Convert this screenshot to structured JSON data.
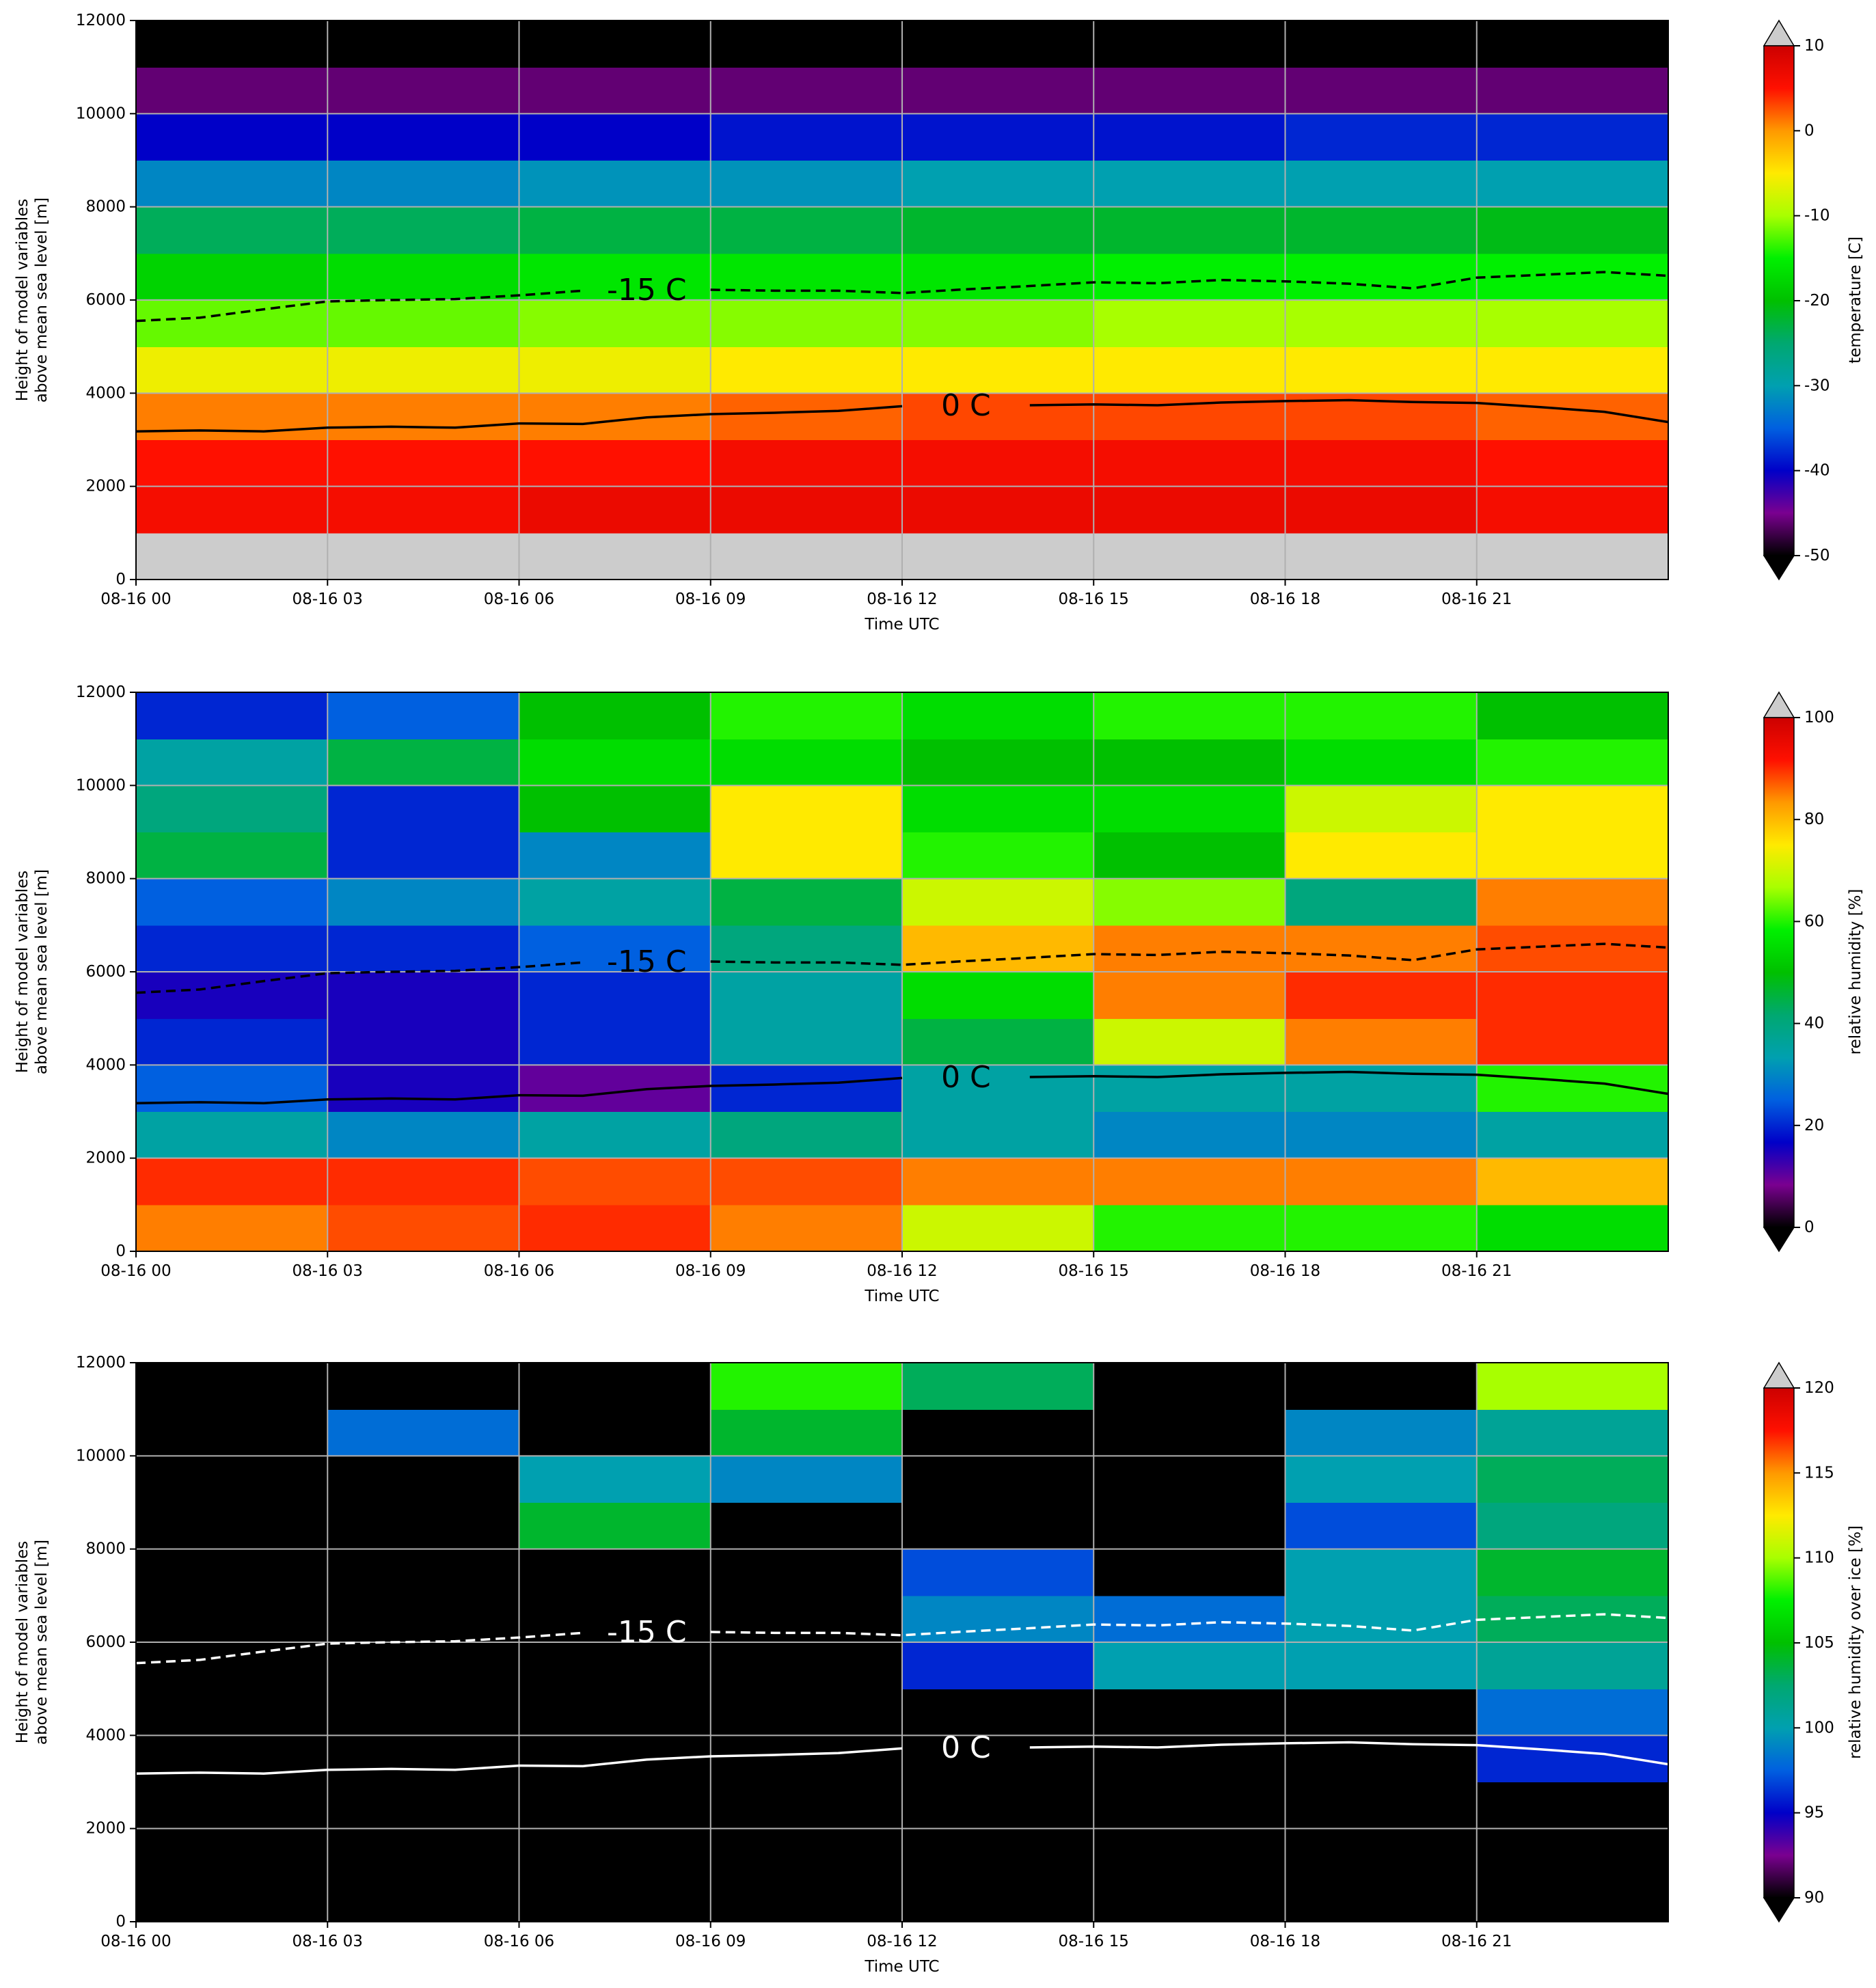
{
  "chart_data": [
    {
      "type": "heatmap",
      "xlabel": "Time UTC",
      "ylabel": [
        "Height of model variables",
        "above mean sea level [m]"
      ],
      "colorbar_label": "temperature [C]",
      "xlim": [
        0,
        24
      ],
      "ylim": [
        0,
        12000
      ],
      "xticks": [
        {
          "value": 0,
          "label": "08-16 00"
        },
        {
          "value": 3,
          "label": "08-16 03"
        },
        {
          "value": 6,
          "label": "08-16 06"
        },
        {
          "value": 9,
          "label": "08-16 09"
        },
        {
          "value": 12,
          "label": "08-16 12"
        },
        {
          "value": 15,
          "label": "08-16 15"
        },
        {
          "value": 18,
          "label": "08-16 18"
        },
        {
          "value": 21,
          "label": "08-16 21"
        }
      ],
      "yticks": [
        0,
        2000,
        4000,
        6000,
        8000,
        10000,
        12000
      ],
      "grid": true,
      "clim": [
        -50,
        10
      ],
      "cticks": [
        10,
        0,
        -10,
        -20,
        -30,
        -40,
        -50
      ],
      "colormap": [
        "#000000",
        "#7a0090",
        "#0000c8",
        "#0060e0",
        "#00a0b0",
        "#00a870",
        "#00c000",
        "#00f000",
        "#a8ff00",
        "#ffea00",
        "#ff9900",
        "#ff1000",
        "#cc0000"
      ],
      "under_color": "#000000",
      "over_color": "#cccccc",
      "line_color": "#000000",
      "x_edges": [
        0,
        3,
        6,
        9,
        12,
        15,
        18,
        21,
        24
      ],
      "y_edges": [
        0,
        1000,
        2000,
        3000,
        4000,
        5000,
        6000,
        7000,
        8000,
        9000,
        10000,
        11000,
        12000
      ],
      "z": [
        [
          12,
          12,
          12,
          12,
          12,
          12,
          12,
          12
        ],
        [
          6,
          6,
          7,
          7,
          7,
          7,
          7,
          6
        ],
        [
          5,
          5,
          5,
          6,
          6,
          6,
          6,
          5
        ],
        [
          1,
          1,
          1,
          2,
          3,
          3,
          3,
          2
        ],
        [
          -6,
          -6,
          -6,
          -5,
          -5,
          -5,
          -5,
          -5
        ],
        [
          -12,
          -12,
          -11,
          -11,
          -11,
          -10,
          -10,
          -10
        ],
        [
          -18,
          -17,
          -16,
          -16,
          -16,
          -15,
          -15,
          -15
        ],
        [
          -24,
          -24,
          -23,
          -23,
          -22,
          -22,
          -22,
          -21
        ],
        [
          -32,
          -32,
          -31,
          -31,
          -30,
          -30,
          -30,
          -30
        ],
        [
          -40,
          -40,
          -40,
          -39,
          -39,
          -39,
          -38,
          -38
        ],
        [
          -46,
          -46,
          -46,
          -46,
          -46,
          -46,
          -46,
          -46
        ],
        [
          -55,
          -55,
          -55,
          -55,
          -55,
          -55,
          -55,
          -55
        ]
      ],
      "contours": [
        {
          "label": "0 C",
          "style": "solid",
          "x": [
            0,
            1,
            2,
            3,
            4,
            5,
            6,
            7,
            8,
            9,
            10,
            11,
            12,
            13,
            14,
            15,
            16,
            17,
            18,
            19,
            20,
            21,
            22,
            23,
            24
          ],
          "values": [
            3180,
            3200,
            3180,
            3260,
            3280,
            3260,
            3350,
            3340,
            3480,
            3550,
            3580,
            3620,
            3720,
            null,
            3740,
            3760,
            3740,
            3800,
            3830,
            3850,
            3810,
            3790,
            3700,
            3600,
            3380
          ]
        },
        {
          "label": "-15 C",
          "style": "dashed",
          "x": [
            0,
            1,
            2,
            3,
            4,
            5,
            6,
            7,
            8,
            9,
            10,
            11,
            12,
            13,
            14,
            15,
            16,
            17,
            18,
            19,
            20,
            21,
            22,
            23,
            24
          ],
          "values": [
            5550,
            5620,
            5800,
            5970,
            6000,
            6020,
            6100,
            6200,
            null,
            6220,
            6200,
            6200,
            6150,
            6230,
            6300,
            6380,
            6360,
            6430,
            6400,
            6350,
            6250,
            6480,
            6540,
            6600,
            6520
          ]
        }
      ]
    },
    {
      "type": "heatmap",
      "xlabel": "Time UTC",
      "ylabel": [
        "Height of model variables",
        "above mean sea level [m]"
      ],
      "colorbar_label": "relative humidity [%]",
      "xlim": [
        0,
        24
      ],
      "ylim": [
        0,
        12000
      ],
      "xticks": [
        {
          "value": 0,
          "label": "08-16 00"
        },
        {
          "value": 3,
          "label": "08-16 03"
        },
        {
          "value": 6,
          "label": "08-16 06"
        },
        {
          "value": 9,
          "label": "08-16 09"
        },
        {
          "value": 12,
          "label": "08-16 12"
        },
        {
          "value": 15,
          "label": "08-16 15"
        },
        {
          "value": 18,
          "label": "08-16 18"
        },
        {
          "value": 21,
          "label": "08-16 21"
        }
      ],
      "yticks": [
        0,
        2000,
        4000,
        6000,
        8000,
        10000,
        12000
      ],
      "grid": true,
      "clim": [
        0,
        100
      ],
      "cticks": [
        0,
        20,
        40,
        60,
        80,
        100
      ],
      "colormap": [
        "#000000",
        "#7a0090",
        "#0000c8",
        "#0060e0",
        "#00a0b0",
        "#00a870",
        "#00c000",
        "#00f000",
        "#a8ff00",
        "#ffea00",
        "#ff9900",
        "#ff1000",
        "#cc0000"
      ],
      "under_color": "#000000",
      "over_color": "#cccccc",
      "line_color": "#000000",
      "x_edges": [
        0,
        3,
        6,
        9,
        12,
        15,
        18,
        21,
        24
      ],
      "y_edges": [
        0,
        1000,
        2000,
        3000,
        4000,
        5000,
        6000,
        7000,
        8000,
        9000,
        10000,
        11000,
        12000
      ],
      "z": [
        [
          85,
          88,
          90,
          85,
          70,
          60,
          60,
          55
        ],
        [
          90,
          90,
          88,
          88,
          85,
          85,
          85,
          80
        ],
        [
          35,
          30,
          35,
          40,
          35,
          30,
          30,
          35
        ],
        [
          25,
          15,
          10,
          20,
          35,
          35,
          35,
          60
        ],
        [
          20,
          15,
          20,
          35,
          45,
          70,
          85,
          90
        ],
        [
          15,
          15,
          20,
          35,
          55,
          85,
          90,
          90
        ],
        [
          20,
          20,
          25,
          40,
          80,
          85,
          85,
          88
        ],
        [
          25,
          30,
          35,
          45,
          70,
          65,
          40,
          85
        ],
        [
          45,
          20,
          30,
          75,
          60,
          50,
          75,
          75
        ],
        [
          40,
          20,
          50,
          75,
          55,
          55,
          70,
          75
        ],
        [
          35,
          45,
          55,
          55,
          50,
          50,
          55,
          60
        ],
        [
          20,
          25,
          50,
          60,
          55,
          60,
          60,
          50
        ]
      ],
      "contours": [
        {
          "label": "0 C",
          "style": "solid",
          "x": [
            0,
            1,
            2,
            3,
            4,
            5,
            6,
            7,
            8,
            9,
            10,
            11,
            12,
            13,
            14,
            15,
            16,
            17,
            18,
            19,
            20,
            21,
            22,
            23,
            24
          ],
          "values": [
            3180,
            3200,
            3180,
            3260,
            3280,
            3260,
            3350,
            3340,
            3480,
            3550,
            3580,
            3620,
            3720,
            null,
            3740,
            3760,
            3740,
            3800,
            3830,
            3850,
            3810,
            3790,
            3700,
            3600,
            3380
          ]
        },
        {
          "label": "-15 C",
          "style": "dashed",
          "x": [
            0,
            1,
            2,
            3,
            4,
            5,
            6,
            7,
            8,
            9,
            10,
            11,
            12,
            13,
            14,
            15,
            16,
            17,
            18,
            19,
            20,
            21,
            22,
            23,
            24
          ],
          "values": [
            5550,
            5620,
            5800,
            5970,
            6000,
            6020,
            6100,
            6200,
            null,
            6220,
            6200,
            6200,
            6150,
            6230,
            6300,
            6380,
            6360,
            6430,
            6400,
            6350,
            6250,
            6480,
            6540,
            6600,
            6520
          ]
        }
      ]
    },
    {
      "type": "heatmap",
      "xlabel": "Time UTC",
      "ylabel": [
        "Height of model variables",
        "above mean sea level [m]"
      ],
      "colorbar_label": "relative humidity over ice [%]",
      "xlim": [
        0,
        24
      ],
      "ylim": [
        0,
        12000
      ],
      "xticks": [
        {
          "value": 0,
          "label": "08-16 00"
        },
        {
          "value": 3,
          "label": "08-16 03"
        },
        {
          "value": 6,
          "label": "08-16 06"
        },
        {
          "value": 9,
          "label": "08-16 09"
        },
        {
          "value": 12,
          "label": "08-16 12"
        },
        {
          "value": 15,
          "label": "08-16 15"
        },
        {
          "value": 18,
          "label": "08-16 18"
        },
        {
          "value": 21,
          "label": "08-16 21"
        }
      ],
      "yticks": [
        0,
        2000,
        4000,
        6000,
        8000,
        10000,
        12000
      ],
      "grid": true,
      "clim": [
        90,
        120
      ],
      "cticks": [
        90,
        95,
        100,
        105,
        110,
        115,
        120
      ],
      "colormap": [
        "#000000",
        "#7a0090",
        "#0000c8",
        "#0060e0",
        "#00a0b0",
        "#00a870",
        "#00c000",
        "#00f000",
        "#a8ff00",
        "#ffea00",
        "#ff9900",
        "#ff1000",
        "#cc0000"
      ],
      "under_color": "#000000",
      "over_color": "#cccccc",
      "line_color": "#ffffff",
      "x_edges": [
        0,
        3,
        6,
        9,
        12,
        15,
        18,
        21,
        24
      ],
      "y_edges": [
        0,
        1000,
        2000,
        3000,
        4000,
        5000,
        6000,
        7000,
        8000,
        9000,
        10000,
        11000,
        12000
      ],
      "z": [
        [
          80,
          80,
          80,
          80,
          80,
          80,
          80,
          80
        ],
        [
          85,
          88,
          85,
          80,
          88,
          80,
          80,
          80
        ],
        [
          80,
          80,
          80,
          80,
          80,
          80,
          80,
          80
        ],
        [
          80,
          80,
          80,
          80,
          80,
          80,
          80,
          96
        ],
        [
          80,
          80,
          80,
          80,
          80,
          80,
          80,
          98
        ],
        [
          80,
          80,
          80,
          80,
          96,
          100,
          100,
          101
        ],
        [
          80,
          80,
          80,
          80,
          99,
          98,
          100,
          103
        ],
        [
          80,
          80,
          80,
          80,
          97,
          80,
          100,
          104
        ],
        [
          80,
          80,
          104,
          80,
          80,
          80,
          97,
          102
        ],
        [
          80,
          80,
          100,
          99,
          80,
          80,
          100,
          103
        ],
        [
          80,
          98,
          80,
          104,
          80,
          80,
          99,
          101
        ],
        [
          80,
          80,
          80,
          108,
          103,
          80,
          80,
          110
        ]
      ],
      "contours": [
        {
          "label": "0 C",
          "style": "solid",
          "x": [
            0,
            1,
            2,
            3,
            4,
            5,
            6,
            7,
            8,
            9,
            10,
            11,
            12,
            13,
            14,
            15,
            16,
            17,
            18,
            19,
            20,
            21,
            22,
            23,
            24
          ],
          "values": [
            3180,
            3200,
            3180,
            3260,
            3280,
            3260,
            3350,
            3340,
            3480,
            3550,
            3580,
            3620,
            3720,
            null,
            3740,
            3760,
            3740,
            3800,
            3830,
            3850,
            3810,
            3790,
            3700,
            3600,
            3380
          ]
        },
        {
          "label": "-15 C",
          "style": "dashed",
          "x": [
            0,
            1,
            2,
            3,
            4,
            5,
            6,
            7,
            8,
            9,
            10,
            11,
            12,
            13,
            14,
            15,
            16,
            17,
            18,
            19,
            20,
            21,
            22,
            23,
            24
          ],
          "values": [
            5550,
            5620,
            5800,
            5970,
            6000,
            6020,
            6100,
            6200,
            null,
            6220,
            6200,
            6200,
            6150,
            6230,
            6300,
            6380,
            6360,
            6430,
            6400,
            6350,
            6250,
            6480,
            6540,
            6600,
            6520
          ]
        }
      ]
    }
  ]
}
